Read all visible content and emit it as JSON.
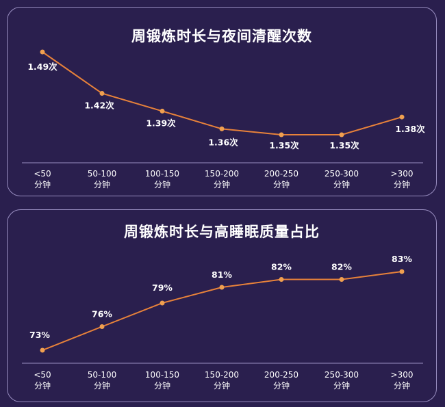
{
  "chart_data": [
    {
      "type": "line",
      "title": "周锻炼时长与夜间清醒次数",
      "categories": [
        [
          "<50",
          "分钟"
        ],
        [
          "50-100",
          "分钟"
        ],
        [
          "100-150",
          "分钟"
        ],
        [
          "150-200",
          "分钟"
        ],
        [
          "200-250",
          "分钟"
        ],
        [
          "250-300",
          "分钟"
        ],
        [
          ">300",
          "分钟"
        ]
      ],
      "values": [
        1.49,
        1.42,
        1.39,
        1.36,
        1.35,
        1.35,
        1.38
      ],
      "data_labels": [
        "1.49次",
        "1.42次",
        "1.39次",
        "1.36次",
        "1.35次",
        "1.35次",
        "1.38次"
      ],
      "line_color": "#e8823a",
      "point_color": "#f0a050"
    },
    {
      "type": "line",
      "title": "周锻炼时长与高睡眠质量占比",
      "categories": [
        [
          "<50",
          "分钟"
        ],
        [
          "50-100",
          "分钟"
        ],
        [
          "100-150",
          "分钟"
        ],
        [
          "150-200",
          "分钟"
        ],
        [
          "200-250",
          "分钟"
        ],
        [
          "250-300",
          "分钟"
        ],
        [
          ">300",
          "分钟"
        ]
      ],
      "values": [
        73,
        76,
        79,
        81,
        82,
        82,
        83
      ],
      "data_labels": [
        "73%",
        "76%",
        "79%",
        "81%",
        "82%",
        "82%",
        "83%"
      ],
      "line_color": "#e8823a",
      "point_color": "#f0a050"
    }
  ]
}
